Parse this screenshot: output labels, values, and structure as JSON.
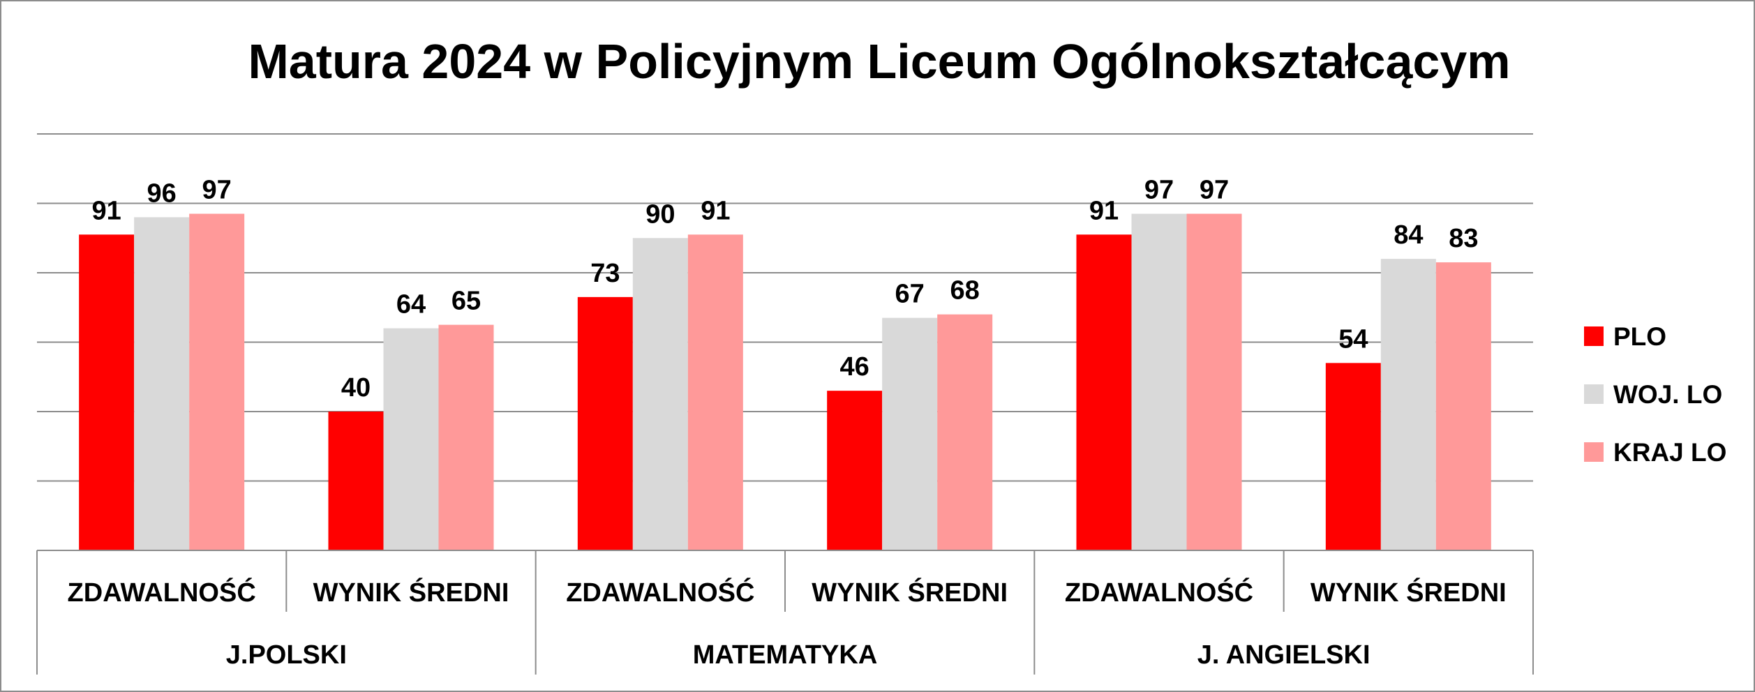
{
  "chart_data": {
    "type": "bar",
    "title": "Matura 2024 w Policyjnym Liceum Ogólnokształcącym",
    "groups": [
      {
        "label": "J.POLSKI",
        "categories": [
          "ZDAWALNOŚĆ",
          "WYNIK ŚREDNI"
        ]
      },
      {
        "label": "MATEMATYKA",
        "categories": [
          "ZDAWALNOŚĆ",
          "WYNIK ŚREDNI"
        ]
      },
      {
        "label": "J. ANGIELSKI",
        "categories": [
          "ZDAWALNOŚĆ",
          "WYNIK ŚREDNI"
        ]
      }
    ],
    "series": [
      {
        "name": "PLO",
        "color": "#ff0000",
        "values": [
          91,
          40,
          73,
          46,
          91,
          54
        ]
      },
      {
        "name": "WOJ. LO",
        "color": "#d9d9d9",
        "values": [
          96,
          64,
          90,
          67,
          97,
          84
        ]
      },
      {
        "name": "KRAJ LO",
        "color": "#ff9999",
        "values": [
          97,
          65,
          91,
          68,
          97,
          83
        ]
      }
    ],
    "ylim": [
      0,
      120
    ],
    "grid": true,
    "legend": "right"
  }
}
